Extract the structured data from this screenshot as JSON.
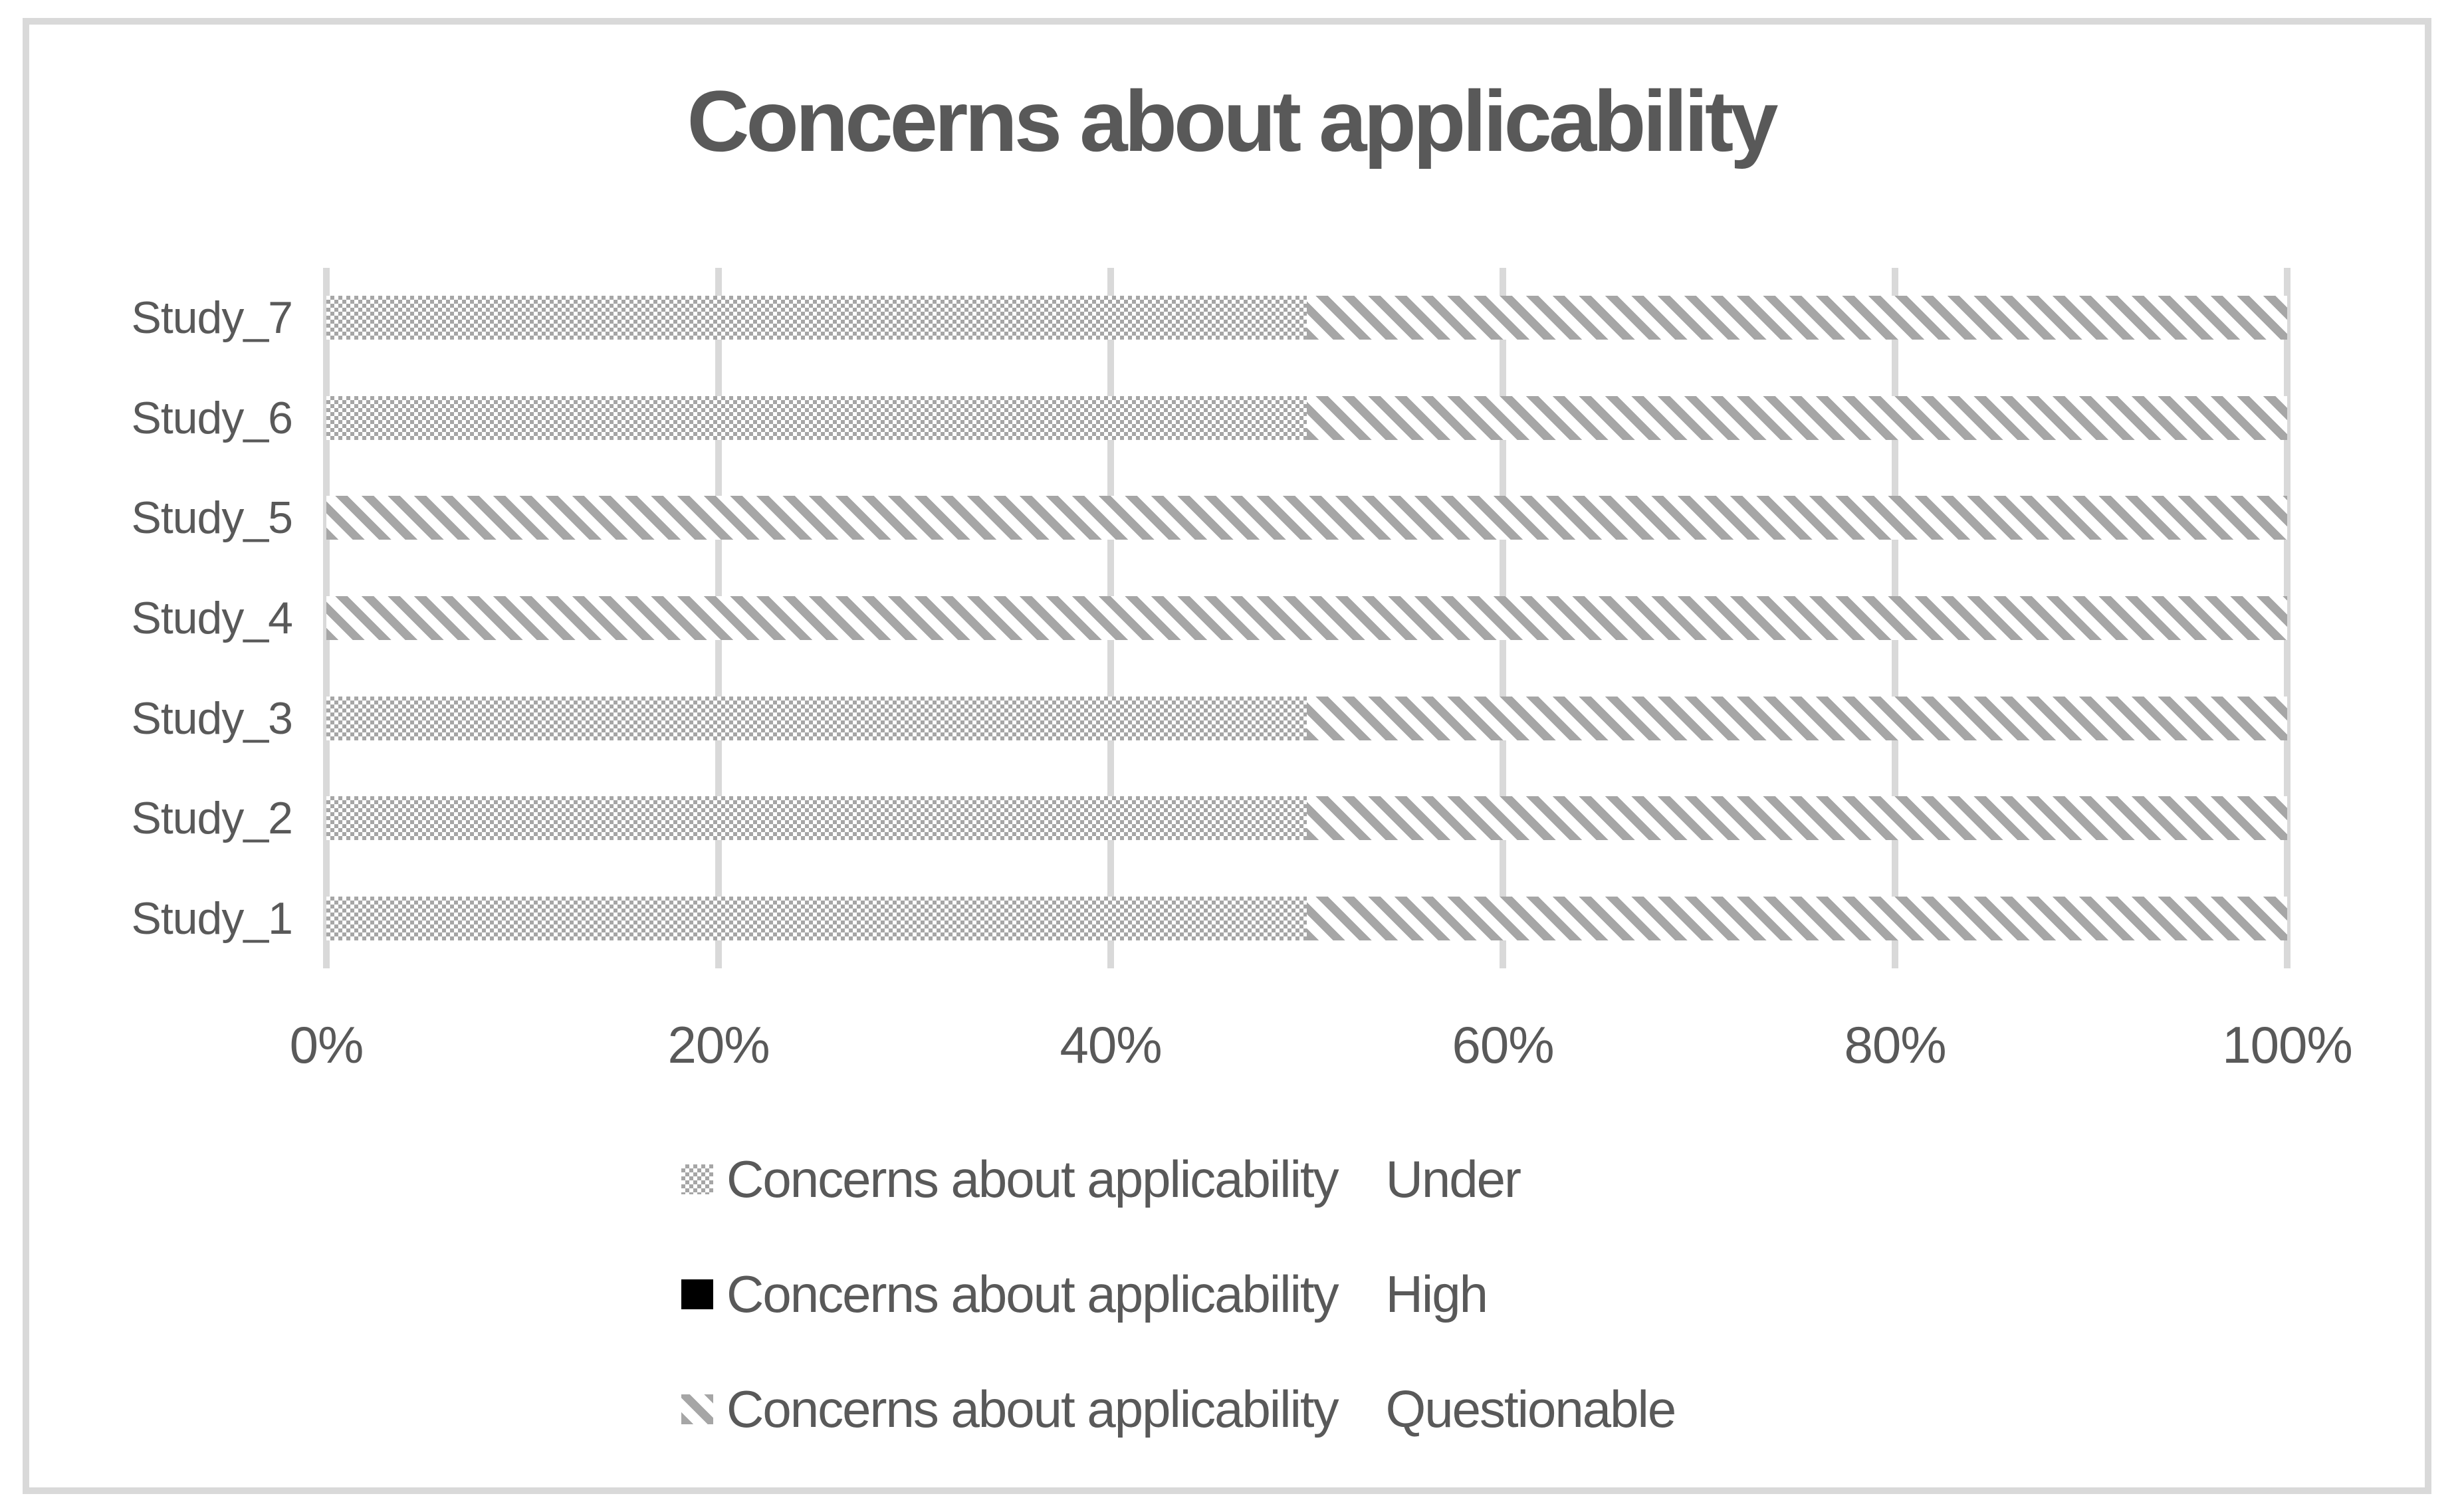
{
  "chart_data": {
    "type": "bar",
    "orientation": "horizontal",
    "stacked": true,
    "title": "Concerns about applicability",
    "categories_top_to_bottom": [
      "Study_7",
      "Study_6",
      "Study_5",
      "Study_4",
      "Study_3",
      "Study_2",
      "Study_1"
    ],
    "series": [
      {
        "name": "Concerns about applicability",
        "level": "Under",
        "pattern": "dotted-gray",
        "values_pct": [
          50,
          50,
          0,
          0,
          50,
          50,
          50
        ]
      },
      {
        "name": "Concerns about applicability",
        "level": "High",
        "pattern": "solid-black",
        "values_pct": [
          0,
          0,
          0,
          0,
          0,
          0,
          0
        ]
      },
      {
        "name": "Concerns about applicability",
        "level": "Questionable",
        "pattern": "diagonal-gray",
        "values_pct": [
          50,
          50,
          100,
          100,
          50,
          50,
          50
        ]
      }
    ],
    "x_axis": {
      "min": 0,
      "max": 100,
      "tick_labels": [
        "0%",
        "20%",
        "40%",
        "60%",
        "80%",
        "100%"
      ],
      "grid": true
    },
    "y_axis": {
      "labels": [
        "Study_7",
        "Study_6",
        "Study_5",
        "Study_4",
        "Study_3",
        "Study_2",
        "Study_1"
      ]
    },
    "legend": {
      "position": "bottom-left",
      "items": [
        {
          "swatch": "dotted-gray",
          "series": "Concerns about applicability",
          "level": "Under"
        },
        {
          "swatch": "solid-black",
          "series": "Concerns about applicability",
          "level": "High"
        },
        {
          "swatch": "diagonal-gray",
          "series": "Concerns about applicability",
          "level": "Questionable"
        }
      ]
    },
    "colors": {
      "pattern_gray": "#a6a6a6",
      "high_black": "#000000",
      "gridline_gray": "#d9d9d9",
      "border_gray": "#d9d9d9",
      "text_gray": "#595959",
      "background": "#ffffff"
    }
  }
}
